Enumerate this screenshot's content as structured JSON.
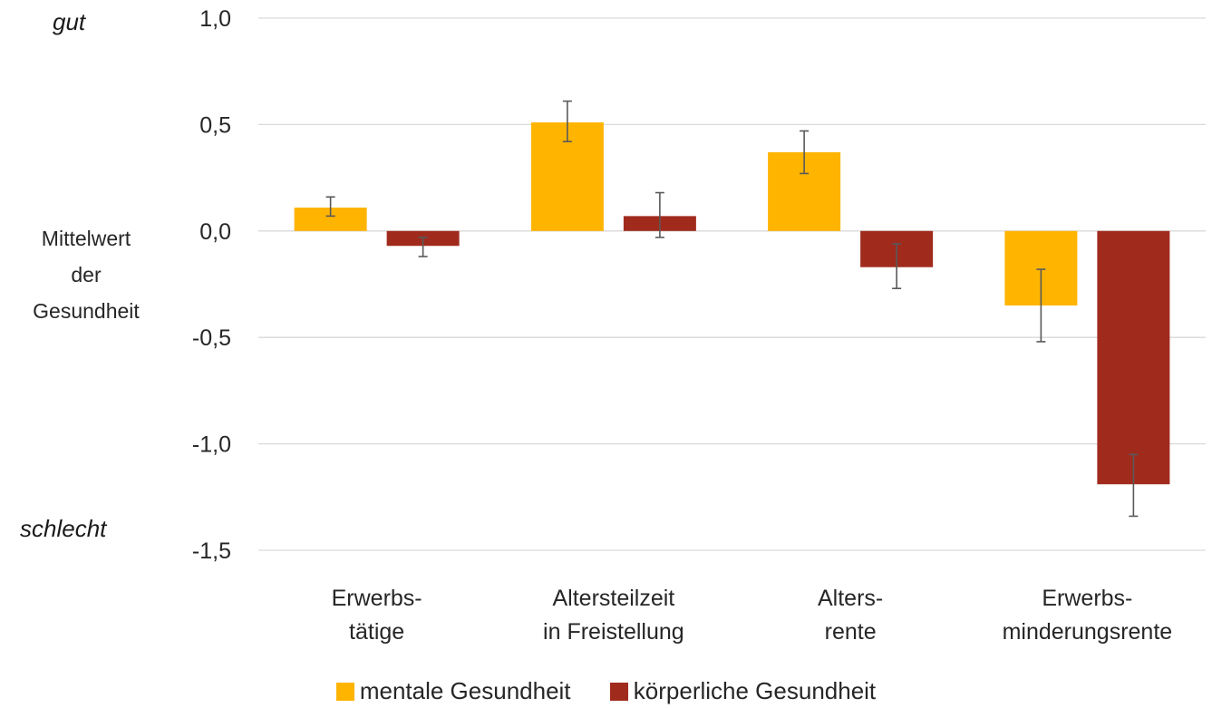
{
  "chart_data": {
    "type": "bar",
    "categories": [
      [
        "Erwerbs-",
        "tätige"
      ],
      [
        "Altersteilzeit",
        "in Freistellung"
      ],
      [
        "Alters-",
        "rente"
      ],
      [
        "Erwerbs-",
        "minderungsrente"
      ]
    ],
    "series": [
      {
        "name": "mentale Gesundheit",
        "color": "#FFB400",
        "values": [
          0.11,
          0.51,
          0.37,
          -0.35
        ],
        "error_low": [
          0.07,
          0.42,
          0.27,
          -0.52
        ],
        "error_high": [
          0.16,
          0.61,
          0.47,
          -0.18
        ]
      },
      {
        "name": "körperliche Gesundheit",
        "color": "#A02B1D",
        "values": [
          -0.07,
          0.07,
          -0.17,
          -1.19
        ],
        "error_low": [
          -0.12,
          -0.03,
          -0.27,
          -1.34
        ],
        "error_high": [
          -0.03,
          0.18,
          -0.06,
          -1.05
        ]
      }
    ],
    "ylim": [
      -1.5,
      1.0
    ],
    "yticks": [
      "1,0",
      "0,5",
      "0,0",
      "-0,5",
      "-1,0",
      "-1,5"
    ],
    "ylabel": [
      "Mittelwert",
      "der",
      "Gesundheit"
    ],
    "top_label": "gut",
    "bottom_label": "schlecht",
    "grid": true,
    "legend_position": "bottom"
  }
}
